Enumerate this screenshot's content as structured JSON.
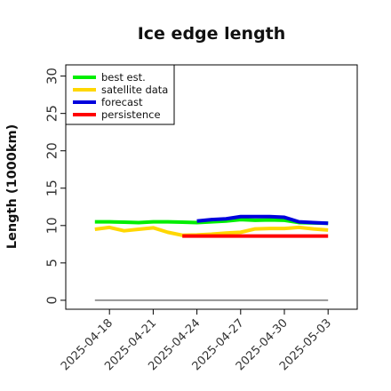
{
  "chart_data": {
    "type": "line",
    "title": "Ice edge length",
    "xlabel": "",
    "ylabel": "Length (1000km)",
    "ylim": [
      -1.2,
      31.5
    ],
    "xlim": [
      "2025-04-15",
      "2025-05-05"
    ],
    "yticks": [
      0,
      5,
      10,
      15,
      20,
      25,
      30
    ],
    "xticks": [
      "2025-04-18",
      "2025-04-21",
      "2025-04-24",
      "2025-04-27",
      "2025-04-30",
      "2025-05-03"
    ],
    "highlighted_xtick": "2025-04-24",
    "highlight_color": "#2e8b2e",
    "legend_position": "top-left",
    "grid": false,
    "series": [
      {
        "name": "best est.",
        "color": "#00ee00",
        "x": [
          "2025-04-17",
          "2025-04-18",
          "2025-04-19",
          "2025-04-20",
          "2025-04-21",
          "2025-04-22",
          "2025-04-23",
          "2025-04-24",
          "2025-04-25",
          "2025-04-26",
          "2025-04-27",
          "2025-04-28",
          "2025-04-29",
          "2025-04-30",
          "2025-05-01",
          "2025-05-02",
          "2025-05-03"
        ],
        "y": [
          10.5,
          10.5,
          10.45,
          10.4,
          10.5,
          10.5,
          10.45,
          10.4,
          10.5,
          10.6,
          10.8,
          10.7,
          10.75,
          10.7,
          10.4,
          10.35,
          10.3
        ]
      },
      {
        "name": "satellite data",
        "color": "#ffd700",
        "x": [
          "2025-04-17",
          "2025-04-18",
          "2025-04-19",
          "2025-04-20",
          "2025-04-21",
          "2025-04-22",
          "2025-04-23",
          "2025-04-24",
          "2025-04-25",
          "2025-04-26",
          "2025-04-27",
          "2025-04-28",
          "2025-04-29",
          "2025-04-30",
          "2025-05-01",
          "2025-05-02",
          "2025-05-03"
        ],
        "y": [
          9.5,
          9.75,
          9.3,
          9.5,
          9.7,
          9.1,
          8.7,
          8.75,
          8.85,
          9.0,
          9.1,
          9.55,
          9.6,
          9.6,
          9.75,
          9.55,
          9.4
        ]
      },
      {
        "name": "forecast",
        "color": "#0000dd",
        "x": [
          "2025-04-24",
          "2025-04-25",
          "2025-04-26",
          "2025-04-27",
          "2025-04-28",
          "2025-04-29",
          "2025-04-30",
          "2025-05-01",
          "2025-05-02",
          "2025-05-03"
        ],
        "y": [
          10.6,
          10.8,
          10.9,
          11.2,
          11.2,
          11.2,
          11.1,
          10.5,
          10.4,
          10.3
        ]
      },
      {
        "name": "persistence",
        "color": "#ff0000",
        "x": [
          "2025-04-23",
          "2025-05-03"
        ],
        "y": [
          8.6,
          8.6
        ]
      }
    ],
    "baseline": {
      "color": "#777777",
      "x": [
        "2025-04-17",
        "2025-05-03"
      ],
      "y": [
        0,
        0
      ]
    }
  }
}
